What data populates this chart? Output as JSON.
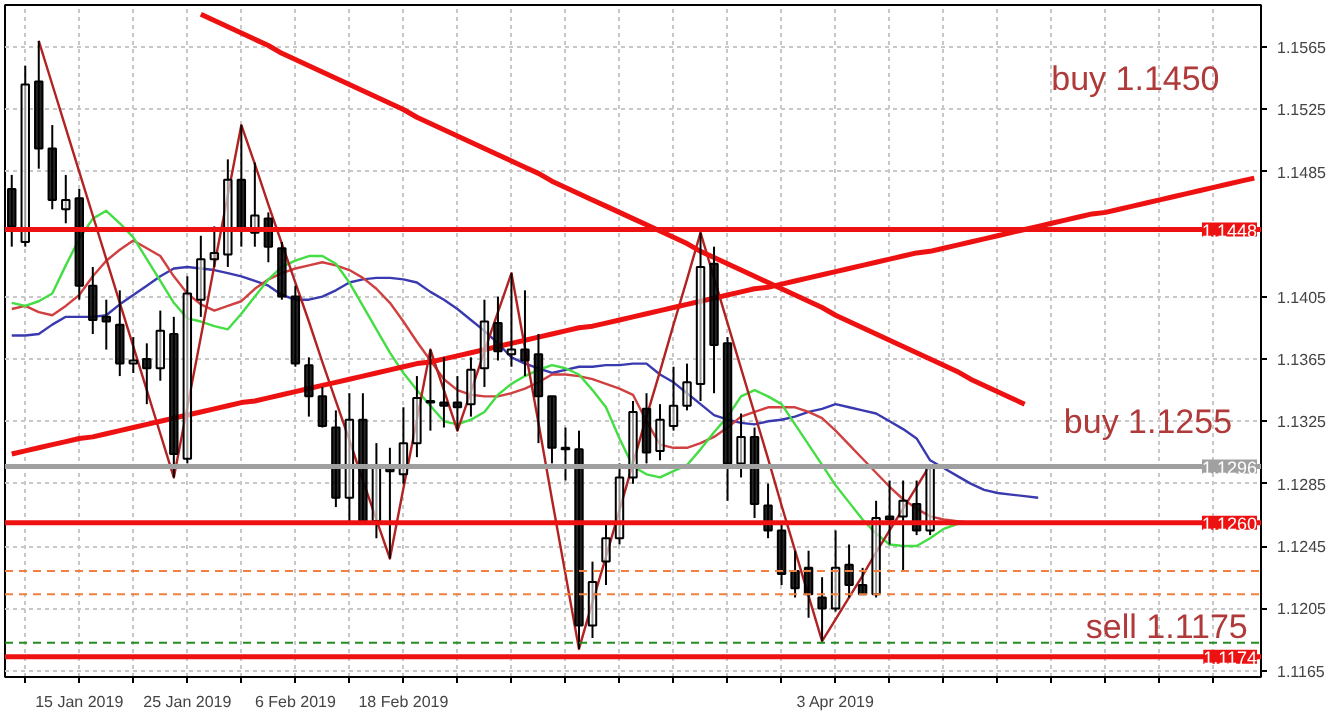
{
  "chart_data": {
    "type": "candlestick",
    "categories": [
      null,
      null,
      null,
      null,
      null,
      "15 Jan 2019",
      null,
      null,
      null,
      null,
      null,
      null,
      null,
      "25 Jan 2019",
      null,
      null,
      null,
      null,
      null,
      null,
      null,
      "6 Feb 2019",
      null,
      null,
      null,
      null,
      null,
      null,
      null,
      "18 Feb 2019",
      null,
      null,
      null,
      null,
      null,
      null,
      null,
      null,
      null,
      null,
      null,
      null,
      null,
      null,
      null,
      null,
      null,
      null,
      null,
      null,
      null,
      null,
      null,
      null,
      null,
      null,
      null,
      null,
      null,
      null,
      null,
      "3 Apr 2019",
      null,
      null,
      null,
      null,
      null,
      null,
      null,
      null,
      null,
      null,
      null,
      null,
      null,
      null,
      null,
      null,
      null,
      null,
      null,
      null,
      null,
      null,
      null,
      null,
      null,
      null,
      null,
      null,
      null,
      null,
      null
    ],
    "ohlc": [
      [
        1.1474,
        1.1483,
        1.1437,
        1.145
      ],
      [
        1.144,
        1.1553,
        1.1437,
        1.1541
      ],
      [
        1.1543,
        1.1569,
        1.1487,
        1.15
      ],
      [
        1.15,
        1.1515,
        1.1461,
        1.1467
      ],
      [
        1.1461,
        1.1483,
        1.1452,
        1.1467
      ],
      [
        1.1468,
        1.1474,
        1.1403,
        1.1412
      ],
      [
        1.1412,
        1.1424,
        1.1381,
        1.139
      ],
      [
        1.1392,
        1.1403,
        1.1371,
        1.1389
      ],
      [
        1.1387,
        1.1409,
        1.1354,
        1.1362
      ],
      [
        1.1362,
        1.1379,
        1.1356,
        1.1364
      ],
      [
        1.1365,
        1.1375,
        1.1336,
        1.1359
      ],
      [
        1.1359,
        1.1396,
        1.1351,
        1.1383
      ],
      [
        1.1381,
        1.1392,
        1.1289,
        1.1304
      ],
      [
        1.1301,
        1.1418,
        1.1298,
        1.1407
      ],
      [
        1.1403,
        1.1444,
        1.1392,
        1.1429
      ],
      [
        1.1429,
        1.145,
        1.1424,
        1.1433
      ],
      [
        1.1432,
        1.1493,
        1.1424,
        1.148
      ],
      [
        1.148,
        1.1515,
        1.1437,
        1.1448
      ],
      [
        1.1446,
        1.1491,
        1.1437,
        1.1457
      ],
      [
        1.1455,
        1.1459,
        1.1427,
        1.1437
      ],
      [
        1.1436,
        1.144,
        1.1403,
        1.1405
      ],
      [
        1.1405,
        1.1412,
        1.136,
        1.1362
      ],
      [
        1.1361,
        1.1366,
        1.1328,
        1.1341
      ],
      [
        1.1341,
        1.1347,
        1.1321,
        1.1322
      ],
      [
        1.1321,
        1.1332,
        1.127,
        1.1276
      ],
      [
        1.1276,
        1.1343,
        1.1259,
        1.1326
      ],
      [
        1.1326,
        1.1343,
        1.1259,
        1.1261
      ],
      [
        1.1261,
        1.1311,
        1.125,
        1.1295
      ],
      [
        1.1295,
        1.1308,
        1.1237,
        1.1293
      ],
      [
        1.1291,
        1.1334,
        1.1285,
        1.1311
      ],
      [
        1.1311,
        1.1354,
        1.1302,
        1.134
      ],
      [
        1.1338,
        1.1371,
        1.1319,
        1.1337
      ],
      [
        1.1337,
        1.1366,
        1.1321,
        1.1335
      ],
      [
        1.1337,
        1.1354,
        1.1319,
        1.1334
      ],
      [
        1.1336,
        1.1366,
        1.1328,
        1.1358
      ],
      [
        1.1359,
        1.1403,
        1.1347,
        1.1389
      ],
      [
        1.1388,
        1.1405,
        1.1364,
        1.137
      ],
      [
        1.1368,
        1.142,
        1.136,
        1.1371
      ],
      [
        1.1371,
        1.1409,
        1.1354,
        1.1364
      ],
      [
        1.1368,
        1.1381,
        1.1311,
        1.1341
      ],
      [
        1.1341,
        1.1341,
        1.1298,
        1.1308
      ],
      [
        1.1308,
        1.1321,
        1.1287,
        1.1307
      ],
      [
        1.1307,
        1.1319,
        1.1179,
        1.1194
      ],
      [
        1.1194,
        1.1235,
        1.1186,
        1.1222
      ],
      [
        1.1235,
        1.1259,
        1.122,
        1.125
      ],
      [
        1.125,
        1.1298,
        1.1246,
        1.1289
      ],
      [
        1.1289,
        1.1338,
        1.1285,
        1.1331
      ],
      [
        1.1333,
        1.1343,
        1.1298,
        1.1305
      ],
      [
        1.1306,
        1.1336,
        1.13,
        1.1326
      ],
      [
        1.1322,
        1.136,
        1.1319,
        1.1335
      ],
      [
        1.1335,
        1.1362,
        1.1332,
        1.135
      ],
      [
        1.1349,
        1.1446,
        1.1338,
        1.1424
      ],
      [
        1.1426,
        1.1437,
        1.1343,
        1.1374
      ],
      [
        1.1375,
        1.1379,
        1.1274,
        1.1298
      ],
      [
        1.1298,
        1.133,
        1.1289,
        1.1315
      ],
      [
        1.1315,
        1.1321,
        1.1263,
        1.1272
      ],
      [
        1.1271,
        1.1285,
        1.125,
        1.1255
      ],
      [
        1.1255,
        1.1259,
        1.122,
        1.1227
      ],
      [
        1.1229,
        1.1242,
        1.1212,
        1.1218
      ],
      [
        1.1231,
        1.1242,
        1.1199,
        1.1214
      ],
      [
        1.1212,
        1.1225,
        1.1184,
        1.1205
      ],
      [
        1.1205,
        1.1255,
        1.1203,
        1.1231
      ],
      [
        1.1233,
        1.1246,
        1.1212,
        1.122
      ],
      [
        1.122,
        1.1231,
        1.1214,
        1.1214
      ],
      [
        1.1214,
        1.1274,
        1.1212,
        1.1263
      ],
      [
        1.1264,
        1.1287,
        1.1246,
        1.1262
      ],
      [
        1.1264,
        1.1287,
        1.1229,
        1.1274
      ],
      [
        1.1272,
        1.1287,
        1.1252,
        1.1255
      ],
      [
        1.1255,
        1.1297,
        1.1252,
        1.1296
      ],
      null,
      null,
      null,
      null,
      null,
      null,
      null,
      null,
      null,
      null,
      null,
      null,
      null,
      null,
      null,
      null,
      null,
      null,
      null,
      null,
      null,
      null,
      null,
      null
    ],
    "series": [
      {
        "type": "line",
        "color": "#3a3ab0",
        "values": [
          1.138,
          1.138,
          1.1381,
          1.1387,
          1.1392,
          1.1392,
          1.1392,
          1.1393,
          1.14,
          1.1406,
          1.1412,
          1.1418,
          1.1423,
          1.1424,
          1.1423,
          1.1422,
          1.142,
          1.1418,
          1.1415,
          1.1412,
          1.1406,
          1.1403,
          1.1403,
          1.1405,
          1.1409,
          1.1414,
          1.1416,
          1.1417,
          1.1417,
          1.1416,
          1.1414,
          1.1408,
          1.1403,
          1.1397,
          1.139,
          1.1383,
          1.1375,
          1.1366,
          1.1362,
          1.1359,
          1.1356,
          1.1358,
          1.136,
          1.136,
          1.1361,
          1.1361,
          1.1362,
          1.1362,
          1.1355,
          1.135,
          1.1343,
          1.1336,
          1.1329,
          1.1326,
          1.1324,
          1.1323,
          1.1325,
          1.1326,
          1.1328,
          1.1331,
          1.1333,
          1.1336,
          1.1334,
          1.1332,
          1.133,
          1.1325,
          1.132,
          1.1314,
          1.13,
          1.1295,
          1.129,
          1.1285,
          1.1281,
          1.1279,
          1.1278,
          1.1277,
          1.1276,
          null,
          null,
          null,
          null,
          null,
          null,
          null,
          null,
          null,
          null,
          null,
          null,
          null,
          null,
          null,
          null
        ]
      },
      {
        "type": "line",
        "color": "#d04040",
        "values": [
          1.1397,
          1.1399,
          1.1395,
          1.1393,
          1.1399,
          1.1406,
          1.1418,
          1.1428,
          1.1435,
          1.1441,
          1.1436,
          1.1431,
          1.1418,
          1.1407,
          1.14,
          1.1396,
          1.1399,
          1.1402,
          1.141,
          1.1416,
          1.142,
          1.1423,
          1.1425,
          1.1427,
          1.1425,
          1.1422,
          1.1417,
          1.141,
          1.1401,
          1.1389,
          1.1376,
          1.1364,
          1.1352,
          1.1345,
          1.1342,
          1.1341,
          1.1341,
          1.1343,
          1.1346,
          1.135,
          1.1355,
          1.1355,
          1.1354,
          1.1352,
          1.1349,
          1.1346,
          1.1342,
          1.1325,
          1.131,
          1.1308,
          1.1308,
          1.1311,
          1.1315,
          1.1321,
          1.1328,
          1.1331,
          1.1334,
          1.1334,
          1.1334,
          1.1331,
          1.1327,
          1.1319,
          1.131,
          1.1301,
          1.1292,
          1.1283,
          1.1275,
          1.1269,
          1.1264,
          1.1262,
          1.1261,
          1.126,
          1.126,
          null,
          null,
          null,
          null,
          null,
          null,
          null,
          null,
          null,
          null,
          null,
          null,
          null,
          null,
          null,
          null,
          null,
          null,
          null,
          null
        ]
      },
      {
        "type": "line",
        "color": "#44dd44",
        "values": [
          1.1401,
          1.1399,
          1.1402,
          1.1407,
          1.1425,
          1.1442,
          1.1455,
          1.146,
          1.1452,
          1.1443,
          1.1429,
          1.1415,
          1.1401,
          1.1391,
          1.1389,
          1.1386,
          1.1384,
          1.1394,
          1.1405,
          1.1416,
          1.1424,
          1.1428,
          1.1431,
          1.1431,
          1.1426,
          1.1414,
          1.1399,
          1.1384,
          1.1369,
          1.1356,
          1.1345,
          1.1335,
          1.1325,
          1.1323,
          1.1326,
          1.1331,
          1.1342,
          1.1349,
          1.1354,
          1.1358,
          1.1361,
          1.1359,
          1.1355,
          1.1345,
          1.1334,
          1.1314,
          1.1296,
          1.1291,
          1.1289,
          1.1293,
          1.1297,
          1.1307,
          1.1318,
          1.1328,
          1.1341,
          1.1345,
          1.1341,
          1.1336,
          1.1323,
          1.131,
          1.1297,
          1.1284,
          1.1273,
          1.1262,
          1.1253,
          1.1246,
          1.1245,
          1.1245,
          1.125,
          1.1256,
          1.1259,
          null,
          null,
          null,
          null,
          null,
          null,
          null,
          null,
          null,
          null,
          null,
          null,
          null,
          null,
          null,
          null,
          null,
          null,
          null,
          null,
          null,
          null
        ]
      },
      {
        "type": "line",
        "color": "#b22222",
        "values": [
          null,
          null,
          1.1569,
          1.1541,
          1.1513,
          1.1485,
          1.1457,
          1.1429,
          1.1401,
          1.1373,
          1.1345,
          1.1317,
          1.1289,
          1.1334,
          1.1379,
          1.1425,
          1.147,
          1.1515,
          1.149,
          1.1464,
          1.1439,
          1.1414,
          1.1389,
          1.1363,
          1.1338,
          1.1313,
          1.1287,
          1.1262,
          1.1237,
          1.1282,
          1.1326,
          1.1371,
          1.1345,
          1.1319,
          1.1344,
          1.137,
          1.1395,
          1.142,
          1.1372,
          1.1324,
          1.1275,
          1.1227,
          1.1179,
          1.1209,
          1.1238,
          1.1268,
          1.1298,
          1.1328,
          1.1357,
          1.1387,
          1.1416,
          1.1446,
          1.1417,
          1.1388,
          1.1359,
          1.133,
          1.1301,
          1.1271,
          1.1242,
          1.1213,
          1.1184,
          1.1198,
          1.1212,
          1.1226,
          1.1241,
          1.1255,
          1.1269,
          1.1283,
          1.1297,
          null,
          null,
          null,
          null,
          null,
          null,
          null,
          null,
          null,
          null,
          null,
          null,
          null,
          null,
          null,
          null,
          null,
          null,
          null,
          null,
          null,
          null,
          null,
          null
        ]
      },
      {
        "type": "line",
        "color": "#ee1111",
        "values": [
          null,
          null,
          null,
          null,
          null,
          null,
          null,
          null,
          null,
          null,
          null,
          null,
          null,
          null,
          1.1586,
          1.1582,
          1.1578,
          1.1574,
          1.157,
          1.1566,
          1.1561,
          1.1557,
          1.1553,
          1.1549,
          1.1545,
          1.1541,
          1.1537,
          1.1533,
          1.1529,
          1.1525,
          1.152,
          1.1516,
          1.1512,
          1.1508,
          1.1504,
          1.15,
          1.1496,
          1.1492,
          1.1488,
          1.1484,
          1.1479,
          1.1475,
          1.1471,
          1.1467,
          1.1463,
          1.1459,
          1.1455,
          1.1451,
          1.1447,
          1.1443,
          1.1439,
          1.1434,
          1.143,
          1.1426,
          1.1422,
          1.1418,
          1.1414,
          1.141,
          1.1406,
          1.1402,
          1.1398,
          1.1393,
          1.1389,
          1.1385,
          1.1381,
          1.1377,
          1.1373,
          1.1369,
          1.1365,
          1.1361,
          1.1357,
          1.1352,
          1.1348,
          1.1344,
          1.134,
          1.1336,
          null,
          null,
          null,
          null,
          null,
          null,
          null,
          null,
          null,
          null,
          null,
          null,
          null,
          null,
          null,
          null,
          null
        ]
      },
      {
        "type": "line",
        "color": "#ee1111",
        "values": [
          1.1304,
          1.1306,
          1.1308,
          1.131,
          1.1312,
          1.1314,
          1.1315,
          1.1317,
          1.1319,
          1.1321,
          1.1323,
          1.1325,
          1.1327,
          1.1329,
          1.1331,
          1.1333,
          1.1335,
          1.1337,
          1.1338,
          1.134,
          1.1342,
          1.1344,
          1.1346,
          1.1348,
          1.135,
          1.1352,
          1.1354,
          1.1356,
          1.1358,
          1.136,
          1.1362,
          1.1363,
          1.1365,
          1.1367,
          1.1369,
          1.1371,
          1.1373,
          1.1375,
          1.1377,
          1.1379,
          1.1381,
          1.1383,
          1.1385,
          1.1386,
          1.1388,
          1.139,
          1.1392,
          1.1394,
          1.1396,
          1.1398,
          1.14,
          1.1402,
          1.1404,
          1.1406,
          1.1408,
          1.141,
          1.1411,
          1.1413,
          1.1415,
          1.1417,
          1.1419,
          1.1421,
          1.1423,
          1.1425,
          1.1427,
          1.1429,
          1.1431,
          1.1433,
          1.1434,
          1.1436,
          1.1438,
          1.144,
          1.1442,
          1.1444,
          1.1446,
          1.1448,
          1.145,
          1.1452,
          1.1454,
          1.1456,
          1.1458,
          1.1459,
          1.1461,
          1.1463,
          1.1465,
          1.1467,
          1.1469,
          1.1471,
          1.1473,
          1.1475,
          1.1477,
          1.1479,
          1.1481
        ]
      }
    ],
    "ref_lines": [
      {
        "axis": "y",
        "value": 1.1448,
        "label": "1.1448",
        "color": "#ee1111",
        "line_style": "solid"
      },
      {
        "axis": "y",
        "value": 1.1296,
        "label": "1.1296",
        "color": "#a0a0a0",
        "line_style": "solid"
      },
      {
        "axis": "y",
        "value": 1.126,
        "label": "1.1260",
        "color": "#ee1111",
        "line_style": "solid"
      },
      {
        "axis": "y",
        "value": 1.1174,
        "label": "1.1174",
        "color": "#ee1111",
        "line_style": "solid"
      },
      {
        "axis": "y",
        "value": 1.1229,
        "label": null,
        "color": "#f08040",
        "line_style": "dashed"
      },
      {
        "axis": "y",
        "value": 1.1214,
        "label": null,
        "color": "#f08040",
        "line_style": "dashed"
      },
      {
        "axis": "y",
        "value": 1.1183,
        "label": null,
        "color": "#228b22",
        "line_style": "dashed"
      }
    ],
    "annotations": [
      "buy 1.1450",
      "buy 1.1255",
      "sell 1.1175"
    ],
    "ylim": [
      1.1161,
      1.1592
    ],
    "yticks": [
      1.1165,
      1.1205,
      1.1245,
      1.1285,
      1.1325,
      1.1365,
      1.1405,
      1.1485,
      1.1525,
      1.1565
    ],
    "grid": true
  }
}
